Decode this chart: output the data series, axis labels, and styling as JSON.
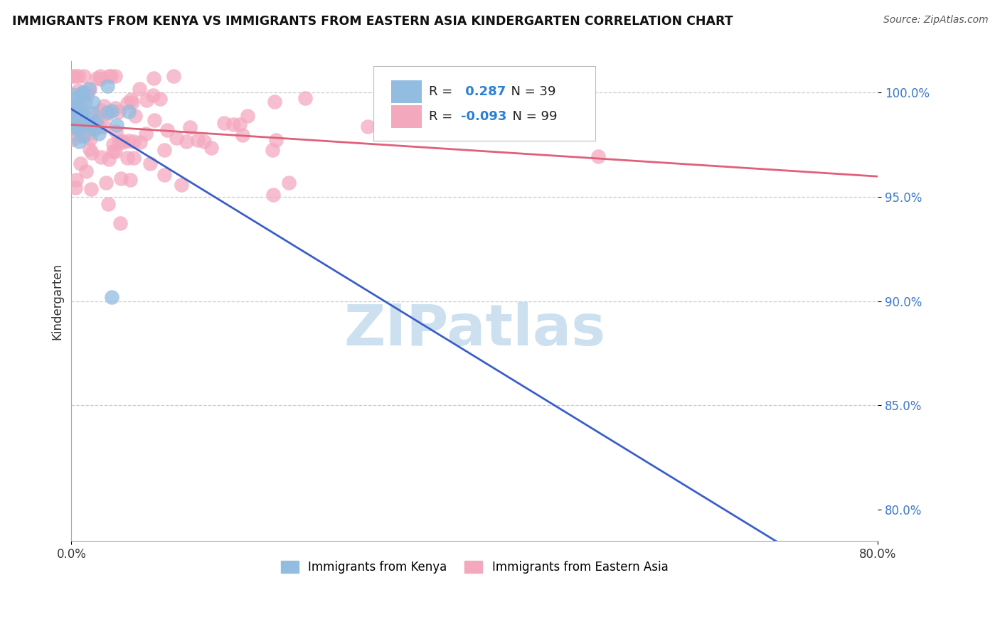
{
  "title": "IMMIGRANTS FROM KENYA VS IMMIGRANTS FROM EASTERN ASIA KINDERGARTEN CORRELATION CHART",
  "source": "Source: ZipAtlas.com",
  "ylabel": "Kindergarten",
  "y_ticks": [
    80.0,
    85.0,
    90.0,
    95.0,
    100.0
  ],
  "x_lim": [
    0.0,
    80.0
  ],
  "y_lim": [
    78.5,
    101.5
  ],
  "kenya_R": 0.287,
  "kenya_N": 39,
  "eastern_asia_R": -0.093,
  "eastern_asia_N": 99,
  "kenya_color": "#92bce0",
  "eastern_asia_color": "#f4a8be",
  "kenya_line_color": "#3a5fc8",
  "eastern_asia_line_color": "#e0607a",
  "background_color": "#ffffff",
  "watermark_color": "#cce0f0"
}
